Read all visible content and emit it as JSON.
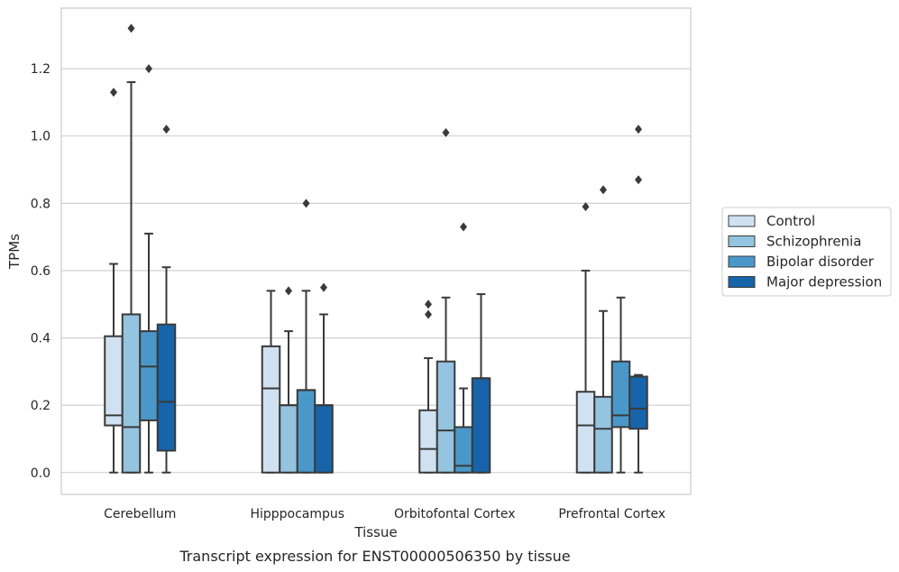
{
  "chart_data": {
    "type": "box",
    "caption": "Transcript expression for ENST00000506350 by tissue",
    "xlabel": "Tissue",
    "ylabel": "TPMs",
    "ylim": [
      -0.065,
      1.38
    ],
    "yticks": [
      "0.0",
      "0.2",
      "0.4",
      "0.6",
      "0.8",
      "1.0",
      "1.2"
    ],
    "grid": "horizontal",
    "legend_position": "right",
    "categories": [
      "Cerebellum",
      "Hipppocampus",
      "Orbitofontal Cortex",
      "Prefrontal Cortex"
    ],
    "series": [
      {
        "name": "Control",
        "color": "#d0e1f2",
        "boxes": [
          {
            "whisker_low": 0.0,
            "q1": 0.14,
            "median": 0.17,
            "q3": 0.405,
            "whisker_high": 0.62,
            "outliers": [
              1.13
            ]
          },
          {
            "whisker_low": 0.0,
            "q1": 0.0,
            "median": 0.25,
            "q3": 0.375,
            "whisker_high": 0.54,
            "outliers": []
          },
          {
            "whisker_low": 0.0,
            "q1": 0.0,
            "median": 0.07,
            "q3": 0.185,
            "whisker_high": 0.34,
            "outliers": [
              0.47,
              0.5
            ]
          },
          {
            "whisker_low": 0.0,
            "q1": 0.0,
            "median": 0.14,
            "q3": 0.24,
            "whisker_high": 0.6,
            "outliers": [
              0.79
            ]
          }
        ]
      },
      {
        "name": "Schizophrenia",
        "color": "#94c4df",
        "boxes": [
          {
            "whisker_low": 0.0,
            "q1": 0.0,
            "median": 0.135,
            "q3": 0.47,
            "whisker_high": 1.16,
            "outliers": [
              1.32
            ]
          },
          {
            "whisker_low": 0.0,
            "q1": 0.0,
            "median": 0.2,
            "q3": 0.2,
            "whisker_high": 0.42,
            "outliers": [
              0.54
            ]
          },
          {
            "whisker_low": 0.0,
            "q1": 0.0,
            "median": 0.125,
            "q3": 0.33,
            "whisker_high": 0.52,
            "outliers": [
              1.01
            ]
          },
          {
            "whisker_low": 0.0,
            "q1": 0.0,
            "median": 0.13,
            "q3": 0.225,
            "whisker_high": 0.48,
            "outliers": [
              0.84
            ]
          }
        ]
      },
      {
        "name": "Bipolar disorder",
        "color": "#4a98c9",
        "boxes": [
          {
            "whisker_low": 0.0,
            "q1": 0.155,
            "median": 0.315,
            "q3": 0.42,
            "whisker_high": 0.71,
            "outliers": [
              1.2
            ]
          },
          {
            "whisker_low": 0.0,
            "q1": 0.0,
            "median": 0.245,
            "q3": 0.245,
            "whisker_high": 0.54,
            "outliers": [
              0.8
            ]
          },
          {
            "whisker_low": 0.0,
            "q1": 0.0,
            "median": 0.02,
            "q3": 0.135,
            "whisker_high": 0.25,
            "outliers": [
              0.73
            ]
          },
          {
            "whisker_low": 0.0,
            "q1": 0.135,
            "median": 0.17,
            "q3": 0.33,
            "whisker_high": 0.52,
            "outliers": []
          }
        ]
      },
      {
        "name": "Major depression",
        "color": "#1764ab",
        "boxes": [
          {
            "whisker_low": 0.0,
            "q1": 0.065,
            "median": 0.21,
            "q3": 0.44,
            "whisker_high": 0.61,
            "outliers": [
              1.02
            ]
          },
          {
            "whisker_low": 0.0,
            "q1": 0.0,
            "median": 0.2,
            "q3": 0.2,
            "whisker_high": 0.47,
            "outliers": [
              0.55
            ]
          },
          {
            "whisker_low": 0.0,
            "q1": 0.0,
            "median": 0.28,
            "q3": 0.28,
            "whisker_high": 0.53,
            "outliers": []
          },
          {
            "whisker_low": 0.0,
            "q1": 0.13,
            "median": 0.19,
            "q3": 0.285,
            "whisker_high": 0.29,
            "outliers": [
              0.87,
              1.02
            ]
          }
        ]
      }
    ]
  },
  "colors": {
    "grid": "#cccccc",
    "frame": "#cccccc",
    "box_edge": "#3a3a3a",
    "text": "#262626"
  }
}
